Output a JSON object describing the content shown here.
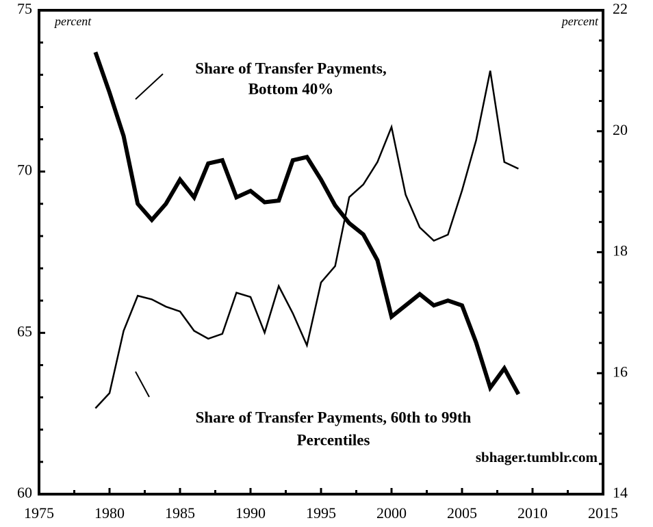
{
  "chart_data": {
    "type": "line",
    "ylabel": "percent",
    "y2label": "percent",
    "source": "sbhager.tumblr.com",
    "x": [
      1979,
      1980,
      1981,
      1982,
      1983,
      1984,
      1985,
      1986,
      1987,
      1988,
      1989,
      1990,
      1991,
      1992,
      1993,
      1994,
      1995,
      1996,
      1997,
      1998,
      1999,
      2000,
      2001,
      2002,
      2003,
      2004,
      2005,
      2006,
      2007,
      2008,
      2009
    ],
    "series": [
      {
        "label": [
          "Share of Transfer Payments,",
          "Bottom 40%"
        ],
        "color": "#000",
        "width": 6,
        "axis": "y",
        "values": [
          73.7,
          72.45,
          71.1,
          69.0,
          68.5,
          69.0,
          69.75,
          69.2,
          70.25,
          70.35,
          69.2,
          69.4,
          69.05,
          69.1,
          70.35,
          70.45,
          69.75,
          68.95,
          68.4,
          68.05,
          67.25,
          65.5,
          65.85,
          66.2,
          65.85,
          66.0,
          65.85,
          64.7,
          63.3,
          63.9,
          63.1
        ]
      },
      {
        "label": [
          "Share of Transfer Payments, 60th to 99th",
          "Percentiles"
        ],
        "color": "#000",
        "width": 2.5,
        "axis": "y2",
        "values": [
          15.42,
          15.67,
          16.7,
          17.28,
          17.22,
          17.1,
          17.02,
          16.7,
          16.57,
          16.65,
          17.33,
          17.26,
          16.67,
          17.44,
          16.99,
          16.46,
          17.5,
          17.77,
          18.91,
          19.12,
          19.49,
          20.07,
          18.95,
          18.41,
          18.19,
          18.29,
          19.02,
          19.85,
          21.0,
          19.49,
          19.38
        ]
      }
    ],
    "xlim": [
      1975,
      2015
    ],
    "xticks": [
      1975,
      1980,
      1985,
      1990,
      1995,
      2000,
      2005,
      2010,
      2015
    ],
    "xminorticks": [
      1977.5,
      1982.5,
      1987.5,
      1992.5,
      1997.5,
      2002.5,
      2007.5,
      2012.5
    ],
    "ylim": [
      60,
      75
    ],
    "yticks": [
      60,
      65,
      70,
      75
    ],
    "yminorticks": [
      61,
      62,
      63,
      64,
      66,
      67,
      68,
      69,
      71,
      72,
      73,
      74
    ],
    "y2lim": [
      14,
      22
    ],
    "y2ticks": [
      14,
      16,
      18,
      20,
      22
    ],
    "y2minorticks": [
      14.5,
      15,
      15.5,
      16.5,
      17,
      17.5,
      18.5,
      19,
      19.5,
      20.5,
      21,
      21.5
    ]
  }
}
